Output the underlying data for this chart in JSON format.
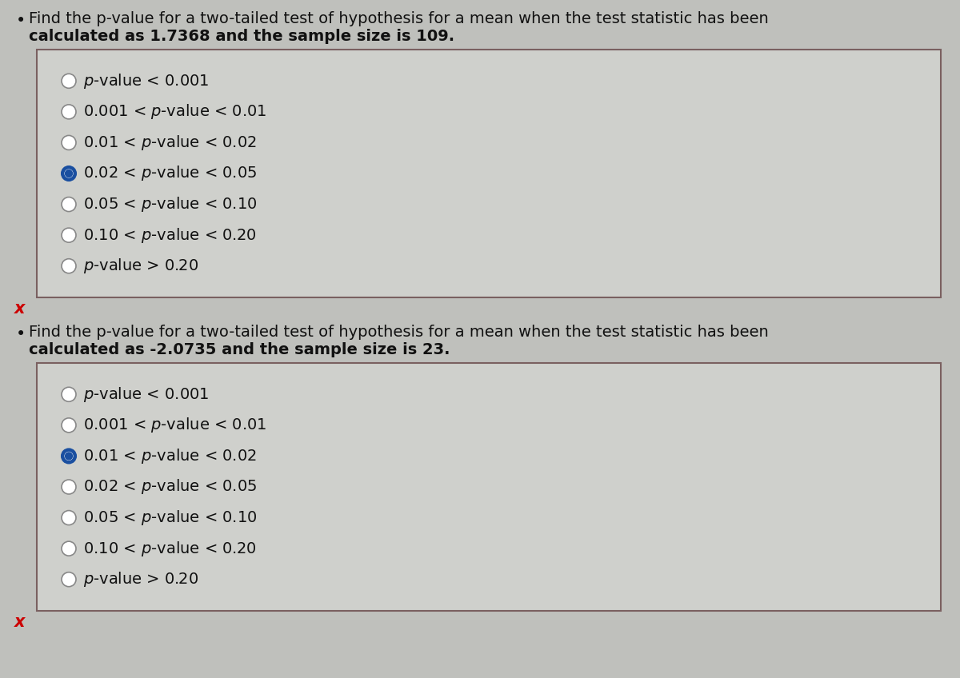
{
  "bg_color": "#bfc0bc",
  "box_bg_color": "#cfd0cc",
  "box_border_color": "#7a6060",
  "text_color": "#111111",
  "bullet_color": "#111111",
  "question1_line1": "Find the p-value for a two-tailed test of hypothesis for a mean when the test statistic has been",
  "question1_line2": "calculated as 1.7368 and the sample size is 109.",
  "question2_line1": "Find the p-value for a two-tailed test of hypothesis for a mean when the test statistic has been",
  "question2_line2": "calculated as -2.0735 and the sample size is 23.",
  "options": [
    "p-value < 0.001",
    "0.001 < p-value < 0.01",
    "0.01 < p-value < 0.02",
    "0.02 < p-value < 0.05",
    "0.05 < p-value < 0.10",
    "0.10 < p-value < 0.20",
    "p-value > 0.20"
  ],
  "selected_q1": 3,
  "selected_q2": 2,
  "radio_empty_color": "#ffffff",
  "radio_border_color": "#888888",
  "radio_selected_blue": "#1a4fa0",
  "x_color": "#cc0000",
  "font_size_question": 14,
  "font_size_option": 14
}
